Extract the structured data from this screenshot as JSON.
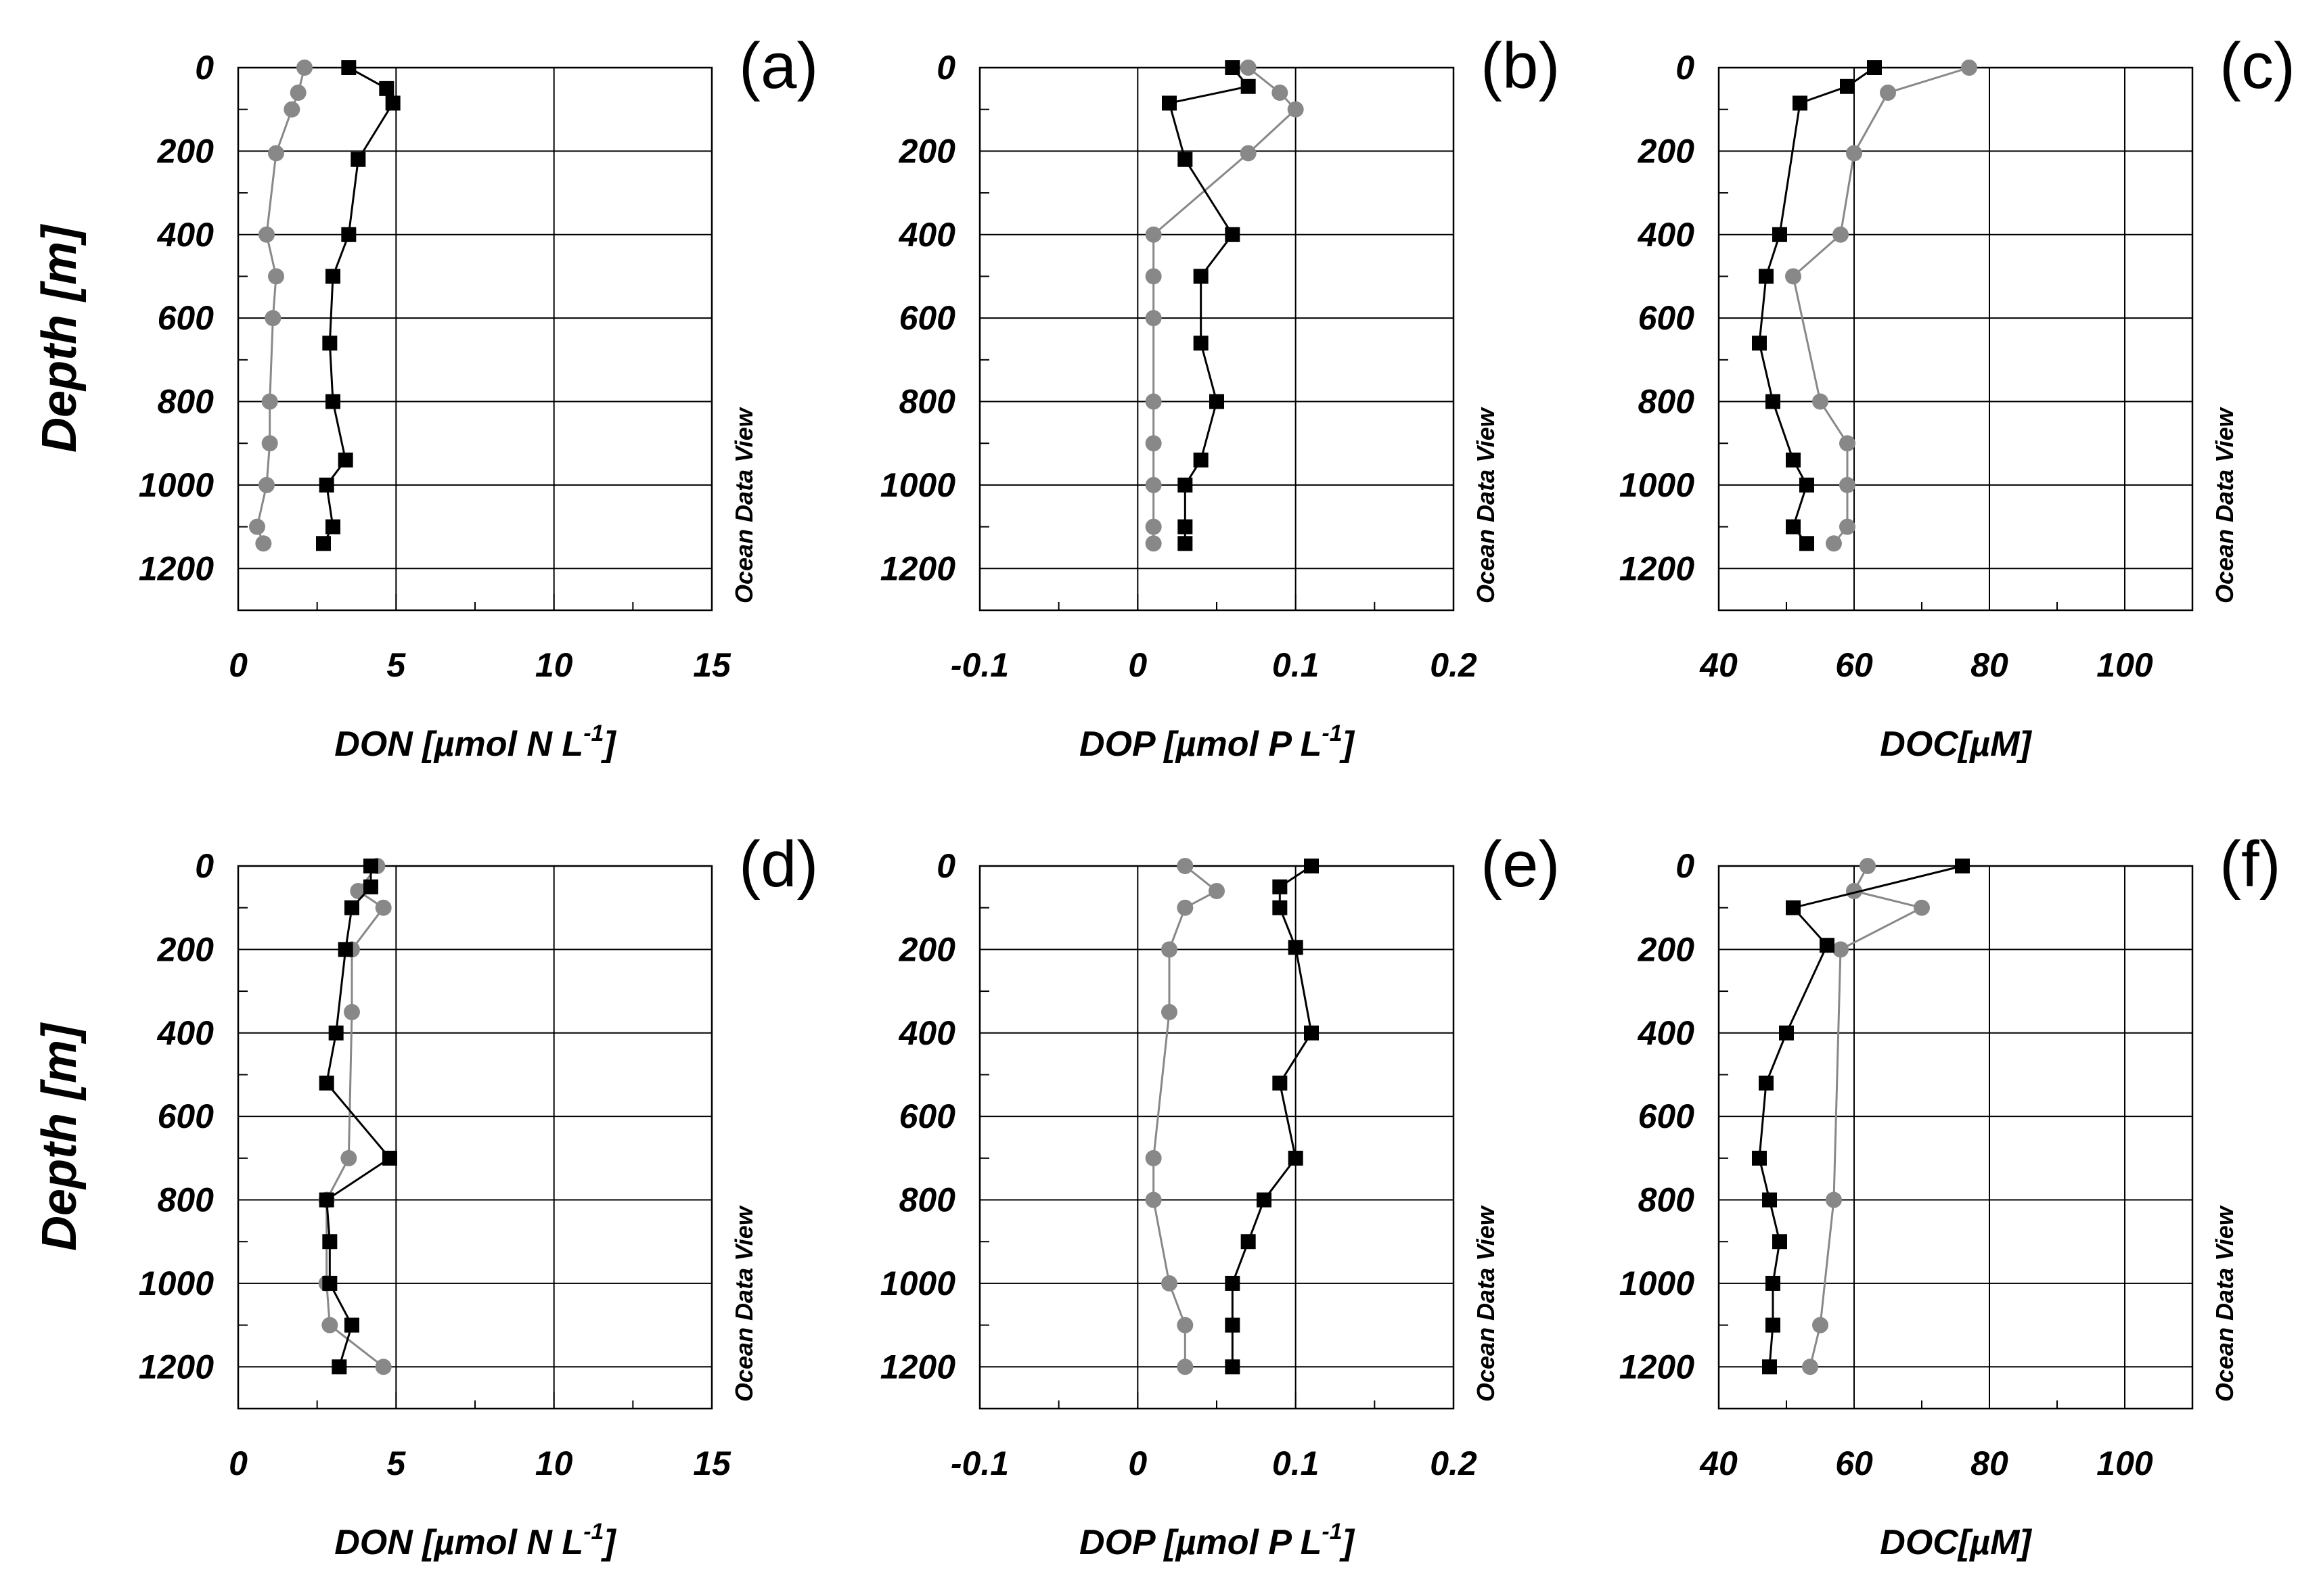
{
  "depth_label": "Depth [m]",
  "watermark": "Ocean Data View",
  "colors": {
    "series_a": "#000000",
    "series_b": "#888888",
    "frame": "#000000",
    "grid": "#000000"
  },
  "panel_order": [
    "a",
    "b",
    "c",
    "d",
    "e",
    "f"
  ],
  "chart_data": [
    {
      "id": "a",
      "panel_label": "(a)",
      "type": "line",
      "xlabel": "DON [µmol N L",
      "xlabel_sup": "-1",
      "xlabel_close": "]",
      "xlim": [
        0,
        15
      ],
      "xticks": [
        0,
        5,
        10,
        15
      ],
      "xtick_labels": [
        "0",
        "5",
        "10",
        "15"
      ],
      "ylim": [
        0,
        1300
      ],
      "yticks": [
        0,
        200,
        400,
        600,
        800,
        1000,
        1200
      ],
      "ytick_labels": [
        "0",
        "200",
        "400",
        "600",
        "800",
        "1000",
        "1200"
      ],
      "ylabel": "Depth [m]",
      "series": [
        {
          "name": "black squares",
          "marker": "square",
          "points": [
            [
              3.5,
              0
            ],
            [
              4.7,
              50
            ],
            [
              4.9,
              85
            ],
            [
              3.8,
              220
            ],
            [
              3.5,
              400
            ],
            [
              3.0,
              500
            ],
            [
              2.9,
              660
            ],
            [
              3.0,
              800
            ],
            [
              3.4,
              940
            ],
            [
              2.8,
              1000
            ],
            [
              3.0,
              1100
            ],
            [
              2.7,
              1140
            ]
          ]
        },
        {
          "name": "gray circles",
          "marker": "circle",
          "points": [
            [
              2.1,
              0
            ],
            [
              1.9,
              60
            ],
            [
              1.7,
              100
            ],
            [
              1.2,
              205
            ],
            [
              0.9,
              400
            ],
            [
              1.2,
              500
            ],
            [
              1.1,
              600
            ],
            [
              1.0,
              800
            ],
            [
              1.0,
              900
            ],
            [
              0.9,
              1000
            ],
            [
              0.6,
              1100
            ],
            [
              0.8,
              1140
            ]
          ]
        }
      ]
    },
    {
      "id": "b",
      "panel_label": "(b)",
      "type": "line",
      "xlabel": "DOP [µmol P L",
      "xlabel_sup": "-1",
      "xlabel_close": "]",
      "xlim": [
        -0.1,
        0.2
      ],
      "xticks": [
        -0.1,
        0,
        0.1,
        0.2
      ],
      "xtick_labels": [
        "-0.1",
        "0",
        "0.1",
        "0.2"
      ],
      "ylim": [
        0,
        1300
      ],
      "yticks": [
        0,
        200,
        400,
        600,
        800,
        1000,
        1200
      ],
      "ytick_labels": [
        "0",
        "200",
        "400",
        "600",
        "800",
        "1000",
        "1200"
      ],
      "ylabel": "",
      "series": [
        {
          "name": "black squares",
          "marker": "square",
          "points": [
            [
              0.06,
              0
            ],
            [
              0.07,
              45
            ],
            [
              0.02,
              85
            ],
            [
              0.03,
              220
            ],
            [
              0.06,
              400
            ],
            [
              0.04,
              500
            ],
            [
              0.04,
              660
            ],
            [
              0.05,
              800
            ],
            [
              0.04,
              940
            ],
            [
              0.03,
              1000
            ],
            [
              0.03,
              1100
            ],
            [
              0.03,
              1140
            ]
          ]
        },
        {
          "name": "gray circles",
          "marker": "circle",
          "points": [
            [
              0.07,
              0
            ],
            [
              0.09,
              60
            ],
            [
              0.1,
              100
            ],
            [
              0.07,
              205
            ],
            [
              0.01,
              400
            ],
            [
              0.01,
              500
            ],
            [
              0.01,
              600
            ],
            [
              0.01,
              800
            ],
            [
              0.01,
              900
            ],
            [
              0.01,
              1000
            ],
            [
              0.01,
              1100
            ],
            [
              0.01,
              1140
            ]
          ]
        }
      ]
    },
    {
      "id": "c",
      "panel_label": "(c)",
      "type": "line",
      "xlabel": "DOC[µM]",
      "xlabel_sup": "",
      "xlabel_close": "",
      "xlim": [
        40,
        110
      ],
      "xticks": [
        40,
        60,
        80,
        100
      ],
      "xtick_labels": [
        "40",
        "60",
        "80",
        "100"
      ],
      "ylim": [
        0,
        1300
      ],
      "yticks": [
        0,
        200,
        400,
        600,
        800,
        1000,
        1200
      ],
      "ytick_labels": [
        "0",
        "200",
        "400",
        "600",
        "800",
        "1000",
        "1200"
      ],
      "ylabel": "",
      "series": [
        {
          "name": "black squares",
          "marker": "square",
          "points": [
            [
              63,
              0
            ],
            [
              59,
              45
            ],
            [
              52,
              85
            ],
            [
              49,
              400
            ],
            [
              47,
              500
            ],
            [
              46,
              660
            ],
            [
              48,
              800
            ],
            [
              51,
              940
            ],
            [
              53,
              1000
            ],
            [
              51,
              1100
            ],
            [
              53,
              1140
            ]
          ]
        },
        {
          "name": "gray circles",
          "marker": "circle",
          "points": [
            [
              77,
              0
            ],
            [
              65,
              60
            ],
            [
              60,
              205
            ],
            [
              58,
              400
            ],
            [
              51,
              500
            ],
            [
              55,
              800
            ],
            [
              59,
              900
            ],
            [
              59,
              1000
            ],
            [
              59,
              1100
            ],
            [
              57,
              1140
            ]
          ]
        }
      ]
    },
    {
      "id": "d",
      "panel_label": "(d)",
      "type": "line",
      "xlabel": "DON [µmol N L",
      "xlabel_sup": "-1",
      "xlabel_close": "]",
      "xlim": [
        0,
        15
      ],
      "xticks": [
        0,
        5,
        10,
        15
      ],
      "xtick_labels": [
        "0",
        "5",
        "10",
        "15"
      ],
      "ylim": [
        0,
        1300
      ],
      "yticks": [
        0,
        200,
        400,
        600,
        800,
        1000,
        1200
      ],
      "ytick_labels": [
        "0",
        "200",
        "400",
        "600",
        "800",
        "1000",
        "1200"
      ],
      "ylabel": "Depth [m]",
      "series": [
        {
          "name": "black squares",
          "marker": "square",
          "points": [
            [
              4.2,
              0
            ],
            [
              4.2,
              50
            ],
            [
              3.6,
              100
            ],
            [
              3.4,
              200
            ],
            [
              3.1,
              400
            ],
            [
              2.8,
              520
            ],
            [
              4.8,
              700
            ],
            [
              2.8,
              800
            ],
            [
              2.9,
              900
            ],
            [
              2.9,
              1000
            ],
            [
              3.6,
              1100
            ],
            [
              3.2,
              1200
            ]
          ]
        },
        {
          "name": "gray circles",
          "marker": "circle",
          "points": [
            [
              4.4,
              0
            ],
            [
              3.8,
              60
            ],
            [
              4.6,
              100
            ],
            [
              3.6,
              200
            ],
            [
              3.6,
              350
            ],
            [
              3.5,
              700
            ],
            [
              2.8,
              800
            ],
            [
              2.8,
              1000
            ],
            [
              2.9,
              1100
            ],
            [
              4.6,
              1200
            ]
          ]
        }
      ]
    },
    {
      "id": "e",
      "panel_label": "(e)",
      "type": "line",
      "xlabel": "DOP [µmol P L",
      "xlabel_sup": "-1",
      "xlabel_close": "]",
      "xlim": [
        -0.1,
        0.2
      ],
      "xticks": [
        -0.1,
        0,
        0.1,
        0.2
      ],
      "xtick_labels": [
        "-0.1",
        "0",
        "0.1",
        "0.2"
      ],
      "ylim": [
        0,
        1300
      ],
      "yticks": [
        0,
        200,
        400,
        600,
        800,
        1000,
        1200
      ],
      "ytick_labels": [
        "0",
        "200",
        "400",
        "600",
        "800",
        "1000",
        "1200"
      ],
      "ylabel": "",
      "series": [
        {
          "name": "black squares",
          "marker": "square",
          "points": [
            [
              0.11,
              0
            ],
            [
              0.09,
              50
            ],
            [
              0.09,
              100
            ],
            [
              0.1,
              195
            ],
            [
              0.11,
              400
            ],
            [
              0.09,
              520
            ],
            [
              0.1,
              700
            ],
            [
              0.08,
              800
            ],
            [
              0.07,
              900
            ],
            [
              0.06,
              1000
            ],
            [
              0.06,
              1100
            ],
            [
              0.06,
              1200
            ]
          ]
        },
        {
          "name": "gray circles",
          "marker": "circle",
          "points": [
            [
              0.03,
              0
            ],
            [
              0.05,
              60
            ],
            [
              0.03,
              100
            ],
            [
              0.02,
              200
            ],
            [
              0.02,
              350
            ],
            [
              0.01,
              700
            ],
            [
              0.01,
              800
            ],
            [
              0.02,
              1000
            ],
            [
              0.03,
              1100
            ],
            [
              0.03,
              1200
            ]
          ]
        }
      ]
    },
    {
      "id": "f",
      "panel_label": "(f)",
      "type": "line",
      "xlabel": "DOC[µM]",
      "xlabel_sup": "",
      "xlabel_close": "",
      "xlim": [
        40,
        110
      ],
      "xticks": [
        40,
        60,
        80,
        100
      ],
      "xtick_labels": [
        "40",
        "60",
        "80",
        "100"
      ],
      "ylim": [
        0,
        1300
      ],
      "yticks": [
        0,
        200,
        400,
        600,
        800,
        1000,
        1200
      ],
      "ytick_labels": [
        "0",
        "200",
        "400",
        "600",
        "800",
        "1000",
        "1200"
      ],
      "ylabel": "",
      "series": [
        {
          "name": "black squares",
          "marker": "square",
          "points": [
            [
              76,
              0
            ],
            [
              51,
              100
            ],
            [
              56,
              190
            ],
            [
              50,
              400
            ],
            [
              47,
              520
            ],
            [
              46,
              700
            ],
            [
              47.5,
              800
            ],
            [
              49,
              900
            ],
            [
              48,
              1000
            ],
            [
              48,
              1100
            ],
            [
              47.5,
              1200
            ]
          ]
        },
        {
          "name": "gray circles",
          "marker": "circle",
          "points": [
            [
              62,
              0
            ],
            [
              60,
              60
            ],
            [
              70,
              100
            ],
            [
              58,
              200
            ],
            [
              57,
              800
            ],
            [
              55,
              1100
            ],
            [
              53.5,
              1200
            ]
          ]
        }
      ]
    }
  ]
}
